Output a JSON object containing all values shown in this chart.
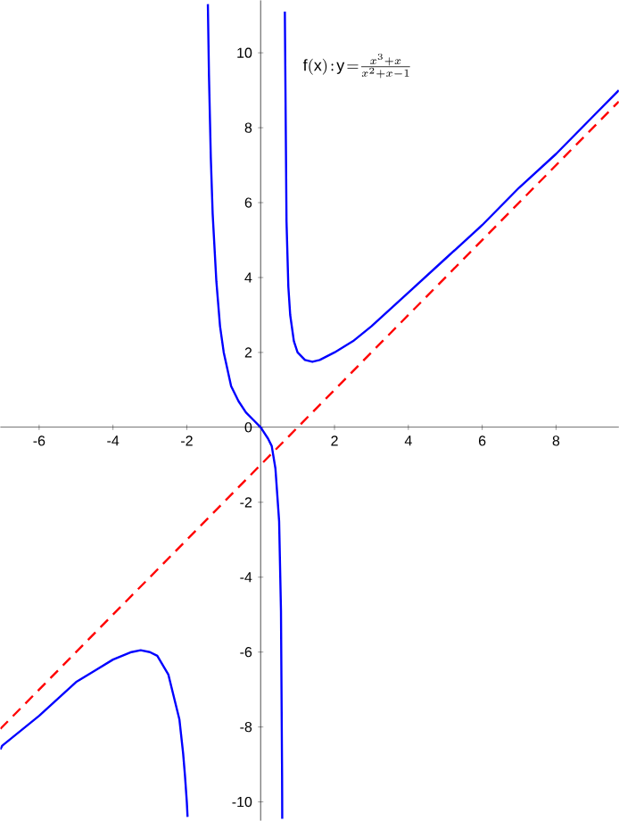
{
  "chart_data": {
    "type": "line",
    "annotations": [
      "\\mathrm{f(x)\\!:\\!y\\!=}\\frac{x^{3}+x}{x^{2}+x-1}"
    ],
    "xlim": [
      -7.05,
      9.7
    ],
    "ylim": [
      -10.5,
      11.4
    ],
    "xticks": [
      -6,
      -4,
      -2,
      2,
      4,
      6,
      8
    ],
    "yticks": [
      -10,
      -8,
      -6,
      -4,
      -2,
      0,
      2,
      4,
      6,
      8,
      10
    ],
    "marker": "none",
    "series": [
      {
        "color": "#0000ff",
        "line_style": "solid",
        "x": [
          -7.05,
          -7,
          -6.5,
          -6,
          -5,
          -4.5,
          -4,
          -3.5,
          -3.25,
          -3,
          -2.8,
          -2.5,
          -2.2,
          -2.1,
          -2.05,
          -2,
          -1.98
        ],
        "values": [
          -8.6,
          -8.5,
          -8.1,
          -7.7,
          -6.8,
          -6.5,
          -6.2,
          -6.0,
          -5.95,
          -6.0,
          -6.1,
          -6.6,
          -7.8,
          -8.7,
          -9.3,
          -10.0,
          -10.4
        ]
      },
      {
        "color": "#0000ff",
        "line_style": "solid",
        "x": [
          -1.43,
          -1.4,
          -1.35,
          -1.3,
          -1.2,
          -1.1,
          -1,
          -0.8,
          -0.6,
          -0.4,
          -0.2,
          0,
          0.2,
          0.3,
          0.4,
          0.5,
          0.55,
          0.58,
          0.582,
          0.584
        ],
        "values": [
          11.3,
          9.4,
          7.2,
          5.7,
          3.9,
          2.7,
          2.0,
          1.1,
          0.7,
          0.4,
          0.2,
          0,
          -0.3,
          -0.5,
          -1.1,
          -2.5,
          -4.9,
          -9.3,
          -9.8,
          -10.45
        ]
      },
      {
        "color": "#0000ff",
        "line_style": "solid",
        "x": [
          0.655,
          0.7,
          0.75,
          0.8,
          0.9,
          1,
          1.2,
          1.4,
          1.6,
          2,
          2.5,
          3,
          4,
          5,
          6,
          7,
          8,
          9,
          9.7
        ],
        "values": [
          11.1,
          5.5,
          3.75,
          3.0,
          2.3,
          2.0,
          1.8,
          1.75,
          1.8,
          2.0,
          2.3,
          2.7,
          3.6,
          4.5,
          5.4,
          6.4,
          7.3,
          8.3,
          9.0
        ]
      },
      {
        "color": "#ff0000",
        "line_style": "dashed",
        "x": [
          -7.05,
          9.7
        ],
        "values": [
          -8.05,
          8.7
        ]
      }
    ]
  }
}
